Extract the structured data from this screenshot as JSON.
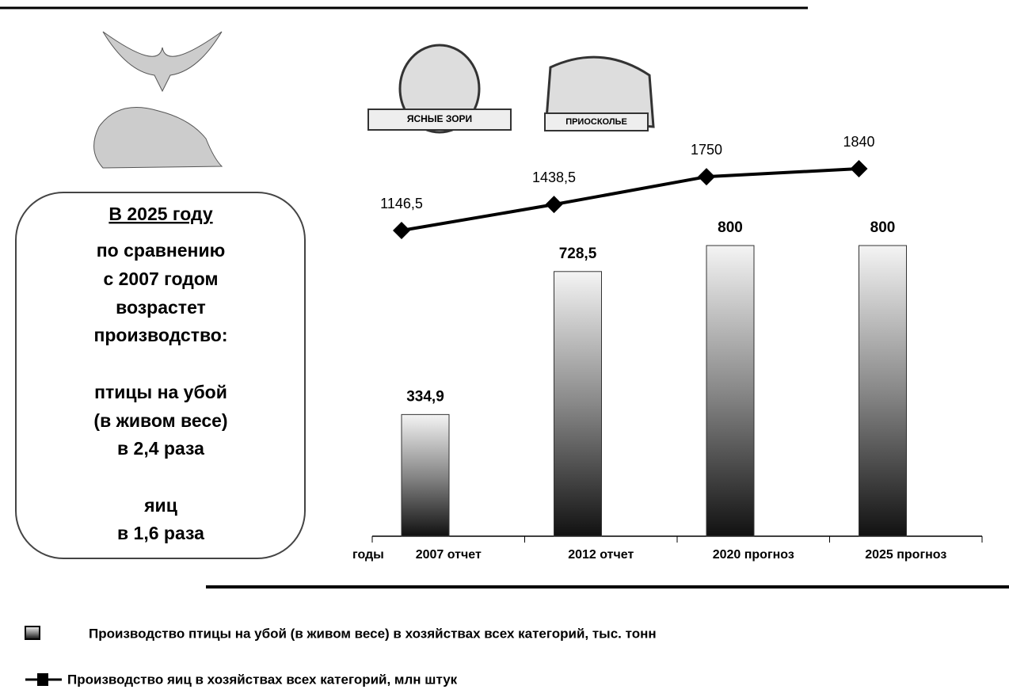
{
  "logos": [
    "ЯСНЫЕ ЗОРИ",
    "ПРИОСКОЛЬЕ"
  ],
  "note": {
    "lines": [
      "В 2025 году",
      "по сравнению",
      "с 2007 годом",
      "возрастет",
      "производство:",
      "птицы на убой",
      "(в живом весе)",
      "в 2,4 раза",
      "яиц",
      "в 1,6 раза"
    ]
  },
  "chart_data": {
    "type": "bar",
    "x_label": "годы",
    "categories": [
      "2007 отчет",
      "2012 отчет",
      "2020 прогноз",
      "2025 прогноз"
    ],
    "series": [
      {
        "name": "Производство птицы на убой (в живом весе) в хозяйствах всех категорий, тыс. тонн",
        "type": "bar",
        "color": "#333333",
        "values": [
          334.9,
          728.5,
          800,
          800
        ],
        "value_labels": [
          "334,9",
          "728,5",
          "800",
          "800"
        ]
      },
      {
        "name": "Производство яиц в хозяйствах всех категорий, млн штук",
        "type": "line",
        "color": "#000000",
        "values": [
          1146.5,
          1438.5,
          1750,
          1840
        ],
        "value_labels": [
          "1146,5",
          "1438,5",
          "1750",
          "1840"
        ]
      }
    ]
  }
}
